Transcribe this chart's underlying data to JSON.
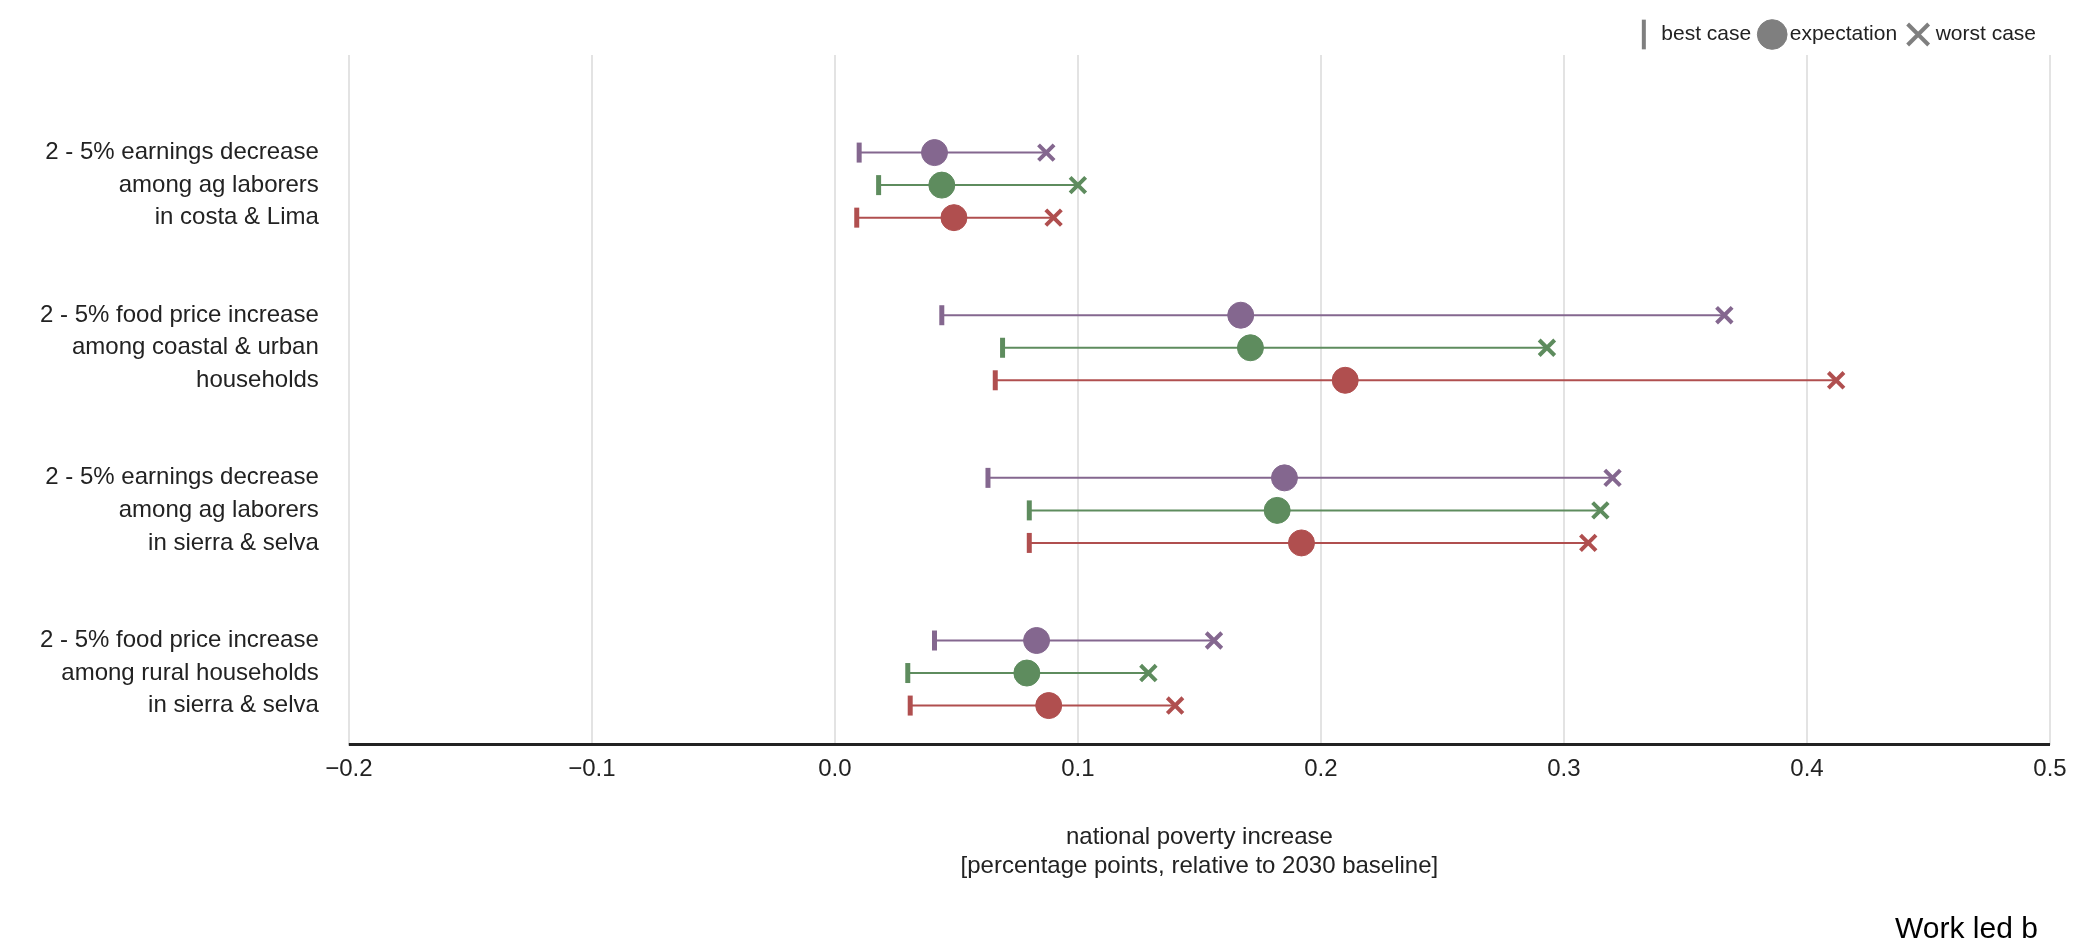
{
  "chart_data": {
    "type": "scatter",
    "orientation": "horizontal",
    "categories": [
      "2 - 5% earnings decrease",
      "among ag laborers",
      "in costa & Lima",
      null,
      null,
      "2 - 5% food price increase",
      "among coastal & urban",
      "households",
      null,
      null,
      "2 - 5% earnings decrease",
      "among ag laborers",
      "in sierra & selva",
      null,
      null,
      "2 - 5% food price increase",
      "among rural households",
      "in sierra & selva"
    ],
    "series": [
      {
        "name": "best case",
        "color": "#7f7f7f",
        "values": [
          null,
          null,
          null,
          null,
          null,
          null,
          null,
          null,
          null,
          null,
          null,
          null,
          null,
          null,
          null,
          null,
          null,
          null
        ]
      },
      {
        "name": "expectation",
        "color": "#7f7f7f",
        "marker": "circle",
        "values": [
          null,
          null,
          null,
          null,
          null,
          null,
          null,
          null,
          null,
          null,
          null,
          null,
          null,
          null,
          null,
          null,
          null,
          null
        ]
      },
      {
        "name": "worst case",
        "color": "#7f7f7f",
        "marker": "cross",
        "values": [
          null,
          null,
          null,
          null,
          null,
          null,
          null,
          null,
          null,
          null,
          null,
          null,
          null,
          null,
          null,
          null,
          null,
          null
        ]
      },
      {
        "color": "#84678f",
        "marker": "circle",
        "values": [
          0.041,
          null,
          null,
          null,
          null,
          0.167,
          null,
          null,
          null,
          null,
          0.185,
          null,
          null,
          null,
          null,
          0.083,
          null,
          null
        ],
        "errors": [
          [
            0.01,
            0.087
          ],
          null,
          null,
          null,
          null,
          [
            0.044,
            0.366
          ],
          null,
          null,
          null,
          null,
          [
            0.063,
            0.32
          ],
          null,
          null,
          null,
          null,
          [
            0.041,
            0.156
          ],
          null,
          null
        ]
      },
      {
        "color": "#5e8c5e",
        "marker": "circle",
        "values": [
          null,
          0.044,
          null,
          null,
          null,
          null,
          0.171,
          null,
          null,
          null,
          null,
          0.182,
          null,
          null,
          null,
          null,
          0.079,
          null
        ],
        "errors": [
          null,
          [
            0.018,
            0.1
          ],
          null,
          null,
          null,
          null,
          [
            0.069,
            0.293
          ],
          null,
          null,
          null,
          null,
          [
            0.08,
            0.315
          ],
          null,
          null,
          null,
          null,
          [
            0.03,
            0.129
          ],
          null
        ]
      },
      {
        "color": "#b04f4f",
        "marker": "circle",
        "values": [
          null,
          null,
          0.049,
          null,
          null,
          null,
          null,
          0.21,
          null,
          null,
          null,
          null,
          0.192,
          null,
          null,
          null,
          null,
          0.088
        ],
        "errors": [
          null,
          null,
          [
            0.009,
            0.09
          ],
          null,
          null,
          null,
          null,
          [
            0.066,
            0.412
          ],
          null,
          null,
          null,
          null,
          [
            0.08,
            0.31
          ],
          null,
          null,
          null,
          null,
          [
            0.031,
            0.14
          ]
        ]
      },
      {
        "color": "#84678f",
        "marker": "cross",
        "values": [
          0.087,
          null,
          null,
          null,
          null,
          0.366,
          null,
          null,
          null,
          null,
          0.32,
          null,
          null,
          null,
          null,
          0.156,
          null,
          null
        ]
      },
      {
        "color": "#5e8c5e",
        "marker": "cross",
        "values": [
          null,
          0.1,
          null,
          null,
          null,
          null,
          0.293,
          null,
          null,
          null,
          null,
          0.315,
          null,
          null,
          null,
          null,
          0.129,
          null
        ]
      },
      {
        "color": "#b04f4f",
        "marker": "cross",
        "values": [
          null,
          null,
          0.09,
          null,
          null,
          null,
          null,
          0.412,
          null,
          null,
          null,
          null,
          0.31,
          null,
          null,
          null,
          null,
          0.14
        ]
      }
    ],
    "xlabel": "national poverty increase\n[percentage points, relative to 2030 baseline]",
    "xlim": [
      -0.2,
      0.5
    ],
    "xticks": [
      {
        "value": -0.2,
        "label": "−0.2"
      },
      {
        "value": -0.1,
        "label": "−0.1"
      },
      {
        "value": 0,
        "label": "0.0"
      },
      {
        "value": 0.1,
        "label": "0.1"
      },
      {
        "value": 0.2,
        "label": "0.2"
      },
      {
        "value": 0.3,
        "label": "0.3"
      },
      {
        "value": 0.4,
        "label": "0.4"
      },
      {
        "value": 0.5,
        "label": "0.5"
      }
    ],
    "grid": "x",
    "legend": "top right",
    "annotations": [
      "Work led b"
    ]
  }
}
